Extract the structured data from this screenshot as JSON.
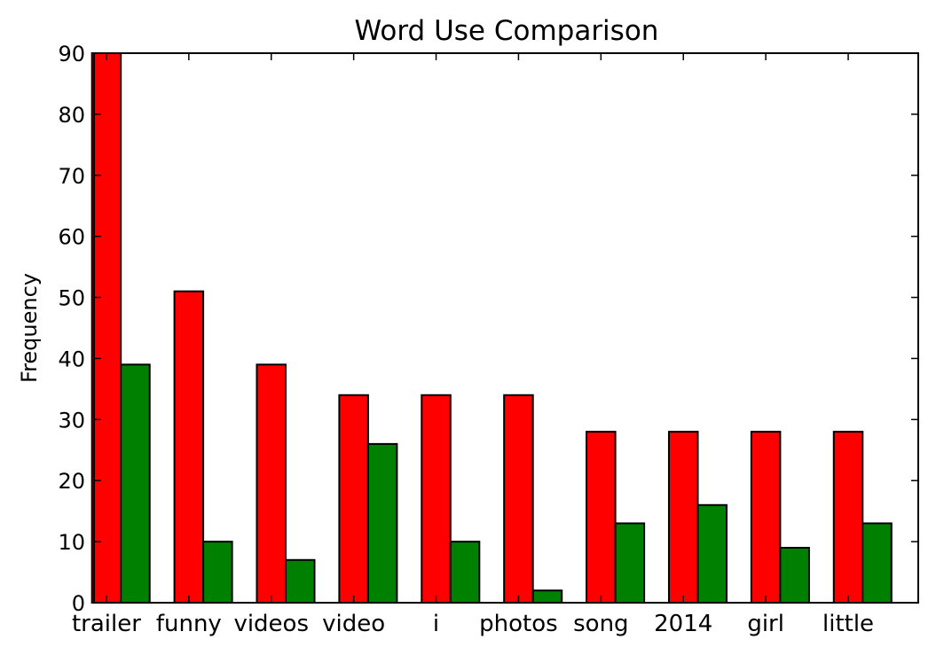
{
  "chart_data": {
    "type": "bar",
    "title": "Word Use Comparison",
    "xlabel": "",
    "ylabel": "Frequency",
    "ylim": [
      0,
      90
    ],
    "yticks": [
      0,
      10,
      20,
      30,
      40,
      50,
      60,
      70,
      80,
      90
    ],
    "grid": false,
    "categories": [
      "trailer",
      "funny",
      "videos",
      "video",
      "i",
      "photos",
      "song",
      "2014",
      "girl",
      "little"
    ],
    "series": [
      {
        "values": [
          90,
          51,
          39,
          34,
          34,
          34,
          28,
          28,
          28,
          28
        ],
        "color": "#ff0000"
      },
      {
        "values": [
          39,
          10,
          7,
          26,
          10,
          2,
          13,
          16,
          9,
          13
        ],
        "color": "#008000"
      }
    ]
  }
}
